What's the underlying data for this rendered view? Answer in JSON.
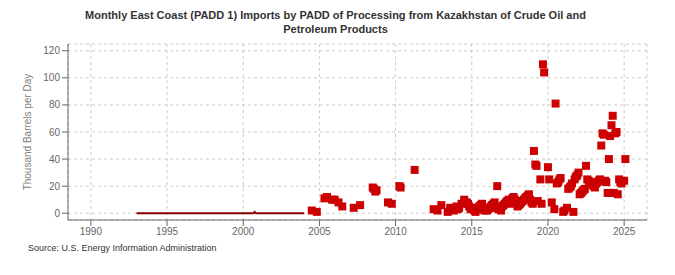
{
  "chart_data": {
    "type": "scatter",
    "title": "Monthly East Coast (PADD 1) Imports by PADD of Processing from Kazakhstan of Crude Oil and\nPetroleum Products",
    "y_label": "Thousand Barrels per Day",
    "annotations": [
      "Source: U.S. Energy Information Administration"
    ],
    "xlim": [
      1988.5,
      2026.5
    ],
    "xticks": [
      1990,
      1995,
      2000,
      2005,
      2010,
      2015,
      2020,
      2025
    ],
    "ylim": [
      -5,
      125
    ],
    "yticks": [
      0,
      20,
      40,
      60,
      80,
      100,
      120
    ],
    "grid": true,
    "series": [
      {
        "type": "line",
        "line_style": "solid",
        "color": "#8b0000",
        "x": [
          1993.0,
          1993.08,
          1993.17,
          1993.25,
          1993.33,
          1993.42,
          1993.5,
          1993.58,
          1993.67,
          1993.75,
          1993.83,
          1993.92,
          1994.0,
          1994.08,
          1994.17,
          1994.25,
          1994.33,
          1994.42,
          1994.5,
          1994.58,
          1994.67,
          1994.75,
          1994.83,
          1994.92,
          1995.0,
          1995.08,
          1995.17,
          1995.25,
          1995.33,
          1995.42,
          1995.5,
          1995.58,
          1995.67,
          1995.75,
          1995.83,
          1995.92,
          1996.0,
          1996.08,
          1996.17,
          1996.25,
          1996.33,
          1996.42,
          1996.5,
          1996.58,
          1996.67,
          1996.75,
          1996.83,
          1996.92,
          1997.0,
          1997.08,
          1997.17,
          1997.25,
          1997.33,
          1997.42,
          1997.5,
          1997.58,
          1997.67,
          1997.75,
          1997.83,
          1997.92,
          1998.0,
          1998.08,
          1998.17,
          1998.25,
          1998.33,
          1998.42,
          1998.5,
          1998.58,
          1998.67,
          1998.75,
          1998.83,
          1998.92,
          1999.0,
          1999.08,
          1999.17,
          1999.25,
          1999.33,
          1999.42,
          1999.5,
          1999.58,
          1999.67,
          1999.75,
          1999.83,
          1999.92,
          2000.0,
          2000.08,
          2000.17,
          2000.25,
          2000.33,
          2000.42,
          2000.5,
          2000.58,
          2000.67,
          2000.75,
          2000.83,
          2000.92,
          2001.0,
          2001.08,
          2001.17,
          2001.25,
          2001.33,
          2001.42,
          2001.5,
          2001.58,
          2001.67,
          2001.75,
          2001.83,
          2001.92,
          2002.0,
          2002.08,
          2002.17,
          2002.25,
          2002.33,
          2002.42,
          2002.5,
          2002.58,
          2002.67,
          2002.75,
          2002.83,
          2002.92,
          2003.0,
          2003.08,
          2003.17,
          2003.25,
          2003.33,
          2003.42,
          2003.5,
          2003.58,
          2003.67,
          2003.75,
          2003.83,
          2003.92,
          2004.0
        ],
        "values": [
          0,
          0,
          0,
          0,
          0,
          0,
          0,
          0,
          0,
          0,
          0,
          0,
          0,
          0,
          0,
          0,
          0,
          0,
          0,
          0,
          0,
          0,
          0,
          0,
          0,
          0,
          0,
          0,
          0,
          0,
          0,
          0,
          0,
          0,
          0,
          0,
          0,
          0,
          0,
          0,
          0,
          0,
          0,
          0,
          0,
          0,
          0,
          0,
          0,
          0,
          0,
          0,
          0,
          0,
          0,
          0,
          0,
          0,
          0,
          0,
          0,
          0,
          0,
          0,
          0,
          0,
          0,
          0,
          0,
          0,
          0,
          0,
          0,
          0,
          0,
          0,
          0,
          0,
          0,
          0,
          0,
          0,
          0,
          0,
          0,
          0,
          0,
          0,
          0,
          0,
          0,
          0,
          0,
          1,
          0,
          0,
          0,
          0,
          0,
          0,
          0,
          0,
          0,
          0,
          0,
          0,
          0,
          0,
          0,
          0,
          0,
          0,
          0,
          0,
          0,
          0,
          0,
          0,
          0,
          0,
          0,
          0,
          0,
          0,
          0,
          0,
          0,
          0,
          0,
          0,
          0,
          0,
          0
        ]
      },
      {
        "type": "scatter",
        "marker": "square",
        "color": "#cc0000",
        "x": [
          2004.5,
          2004.83,
          2005.33,
          2005.5,
          2005.83,
          2006.0,
          2006.25,
          2006.5,
          2007.25,
          2007.67,
          2008.5,
          2008.58,
          2008.67,
          2008.75,
          2009.5,
          2009.75,
          2010.25,
          2010.33,
          2011.25,
          2012.5,
          2012.75,
          2013.0,
          2013.42,
          2013.58,
          2013.83,
          2014.0,
          2014.08,
          2014.17,
          2014.33,
          2014.5,
          2014.67,
          2014.75,
          2014.83,
          2014.92,
          2015.0,
          2015.08,
          2015.17,
          2015.25,
          2015.33,
          2015.42,
          2015.5,
          2015.58,
          2015.67,
          2015.75,
          2015.83,
          2015.92,
          2016.0,
          2016.08,
          2016.17,
          2016.25,
          2016.33,
          2016.42,
          2016.5,
          2016.58,
          2016.67,
          2016.75,
          2016.83,
          2016.92,
          2017.0,
          2017.08,
          2017.17,
          2017.25,
          2017.33,
          2017.42,
          2017.5,
          2017.58,
          2017.67,
          2017.75,
          2017.83,
          2017.92,
          2018.0,
          2018.08,
          2018.17,
          2018.25,
          2018.33,
          2018.42,
          2018.5,
          2018.58,
          2018.67,
          2018.75,
          2018.83,
          2018.92,
          2019.0,
          2019.08,
          2019.17,
          2019.25,
          2019.33,
          2019.5,
          2019.58,
          2019.67,
          2019.75,
          2020.0,
          2020.08,
          2020.25,
          2020.42,
          2020.5,
          2020.58,
          2020.67,
          2020.75,
          2020.83,
          2021.0,
          2021.08,
          2021.25,
          2021.33,
          2021.42,
          2021.5,
          2021.58,
          2021.67,
          2021.75,
          2021.83,
          2021.92,
          2022.0,
          2022.08,
          2022.17,
          2022.25,
          2022.33,
          2022.42,
          2022.5,
          2022.58,
          2022.67,
          2022.75,
          2022.83,
          2022.92,
          2023.0,
          2023.08,
          2023.17,
          2023.25,
          2023.33,
          2023.42,
          2023.5,
          2023.58,
          2023.67,
          2023.75,
          2023.83,
          2023.92,
          2024.0,
          2024.08,
          2024.17,
          2024.25,
          2024.33,
          2024.42,
          2024.5,
          2024.58,
          2024.67,
          2024.75,
          2024.83,
          2025.0,
          2025.08
        ],
        "values": [
          2,
          1,
          11,
          12,
          10,
          10,
          8,
          5,
          4,
          6,
          19,
          18,
          16,
          17,
          8,
          7,
          20,
          19,
          32,
          3,
          2,
          6,
          1,
          4,
          2,
          5,
          3,
          4,
          7,
          10,
          8,
          7,
          5,
          3,
          4,
          3,
          2,
          1,
          3,
          4,
          5,
          6,
          7,
          3,
          2,
          4,
          2,
          3,
          4,
          5,
          6,
          7,
          8,
          4,
          20,
          3,
          4,
          2,
          5,
          6,
          7,
          8,
          9,
          10,
          8,
          7,
          11,
          12,
          10,
          9,
          5,
          6,
          7,
          8,
          9,
          10,
          11,
          12,
          13,
          14,
          10,
          8,
          7,
          46,
          36,
          35,
          9,
          25,
          7,
          110,
          104,
          34,
          25,
          8,
          3,
          81,
          22,
          23,
          25,
          26,
          1,
          2,
          4,
          18,
          19,
          20,
          22,
          1,
          25,
          27,
          28,
          30,
          14,
          15,
          16,
          17,
          18,
          35,
          25,
          24,
          23,
          22,
          21,
          20,
          19,
          22,
          23,
          24,
          25,
          50,
          59,
          58,
          24,
          23,
          15,
          40,
          57,
          65,
          72,
          15,
          59,
          60,
          14,
          25,
          23,
          22,
          24,
          40
        ]
      }
    ]
  }
}
